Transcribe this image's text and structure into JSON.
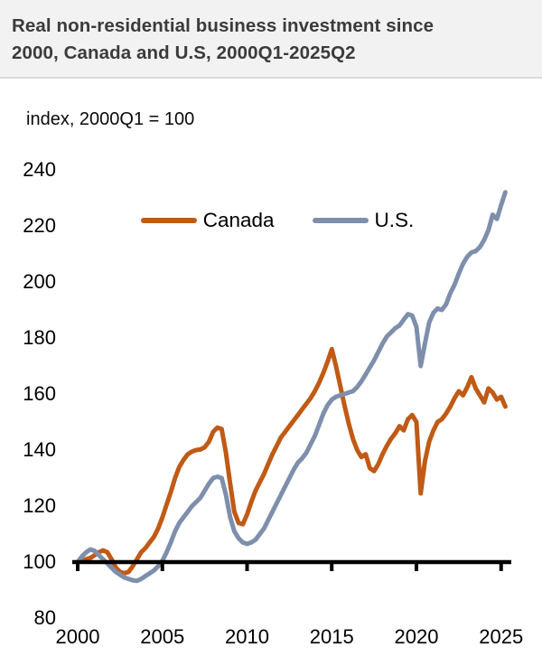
{
  "header": {
    "title_line1": "Real non-residential business investment since",
    "title_line2": "2000, Canada and U.S, 2000Q1-2025Q2"
  },
  "colors": {
    "header_bg": "#f2f2f2",
    "title_text": "#3b3b3b",
    "axis": "#000000",
    "canada": "#c05a15",
    "us": "#7e8fac"
  },
  "chart_data": {
    "type": "line",
    "title": "Real non-residential business investment since 2000, Canada and U.S, 2000Q1-2025Q2",
    "subtitle": "index, 2000Q1 = 100",
    "x_range_labels": [
      "2000Q1",
      "2025Q2"
    ],
    "x_start_year": 2000,
    "x_step_years": 0.25,
    "x_ticks": [
      2000,
      2005,
      2010,
      2015,
      2020,
      2025
    ],
    "y_ticks": [
      240,
      220,
      200,
      180,
      160,
      140,
      120,
      100,
      80
    ],
    "ylim": [
      80,
      240
    ],
    "baseline_value": 100,
    "grid": false,
    "legend_position": "top-center",
    "series": [
      {
        "name": "Canada",
        "color": "#c05a15",
        "values": [
          100,
          100.5,
          101,
          101.5,
          102.5,
          103.5,
          104.2,
          103.5,
          101,
          98,
          96.5,
          96,
          96.5,
          98.5,
          101,
          103.5,
          105,
          107,
          109,
          112,
          116,
          120.5,
          125,
          130,
          134,
          136.5,
          138.5,
          139.5,
          140,
          140.2,
          141,
          143,
          146.5,
          148,
          147.5,
          139,
          128,
          118,
          114,
          113.5,
          117,
          121.5,
          125.5,
          128.5,
          131.5,
          135,
          138.5,
          141.5,
          144.5,
          146.5,
          148.5,
          150.5,
          152.5,
          154.5,
          156.5,
          158.5,
          161,
          164,
          167.5,
          171.5,
          176,
          170,
          163,
          156,
          149.5,
          144,
          140,
          137.5,
          138.5,
          133.5,
          132.5,
          135,
          138.5,
          141.5,
          144,
          146,
          148.5,
          147,
          151,
          152.5,
          150,
          124.5,
          136,
          143,
          147,
          150,
          151,
          153,
          155.5,
          158.5,
          161,
          159.5,
          162.5,
          166,
          162,
          159.5,
          157,
          162,
          160.5,
          158,
          159,
          155.5
        ]
      },
      {
        "name": "U.S.",
        "color": "#7e8fac",
        "values": [
          100,
          102,
          103.5,
          104.5,
          104,
          102.5,
          101,
          99.5,
          98,
          96.5,
          95.5,
          94.5,
          94,
          93.5,
          93.3,
          94,
          95,
          96,
          97,
          98.5,
          100.5,
          103.5,
          107,
          111,
          114,
          116,
          118,
          120,
          121.5,
          123,
          125.5,
          128,
          130,
          130.5,
          130,
          124,
          116,
          111,
          108.5,
          107,
          106.5,
          107,
          108,
          110,
          112,
          115,
          118,
          121,
          124,
          127,
          130,
          133,
          135.5,
          137,
          139,
          142,
          145,
          149,
          153,
          156,
          158,
          159,
          159.5,
          160,
          160.5,
          161,
          162.5,
          164.5,
          167,
          169.5,
          172,
          175,
          178,
          180.5,
          182,
          183.5,
          184.5,
          186.5,
          188.5,
          188,
          184,
          170,
          178,
          185.5,
          189,
          190.5,
          190,
          192,
          196,
          199,
          203,
          206.5,
          209,
          210.5,
          211,
          212.5,
          215,
          218.5,
          224,
          222.5,
          227.5,
          232
        ]
      }
    ]
  }
}
